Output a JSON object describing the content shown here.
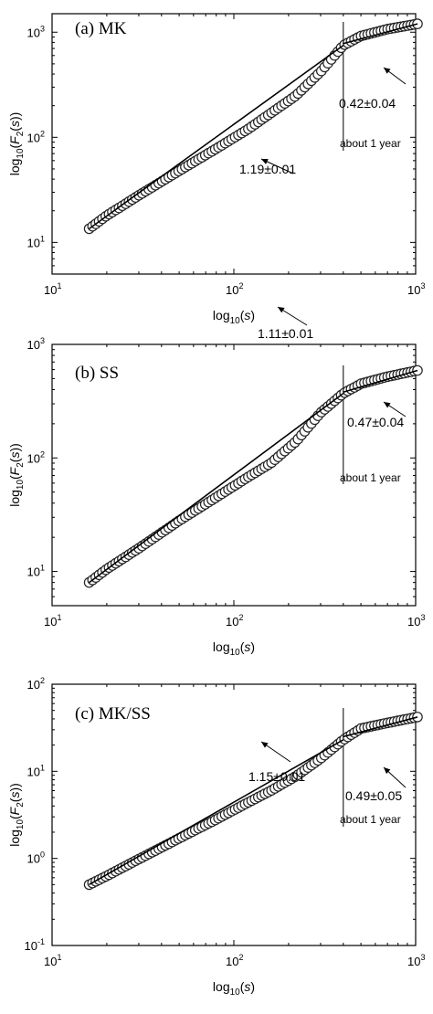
{
  "chart_data": [
    {
      "type": "scatter",
      "panel_label": "(a) MK",
      "xlabel": "log10(s)",
      "ylabel": "log10(F2(s))",
      "xscale": "log",
      "yscale": "log",
      "xlim": [
        10,
        1000
      ],
      "ylim": [
        5,
        1500
      ],
      "x_ticks": [
        {
          "value": 10,
          "exp": "1"
        },
        {
          "value": 100,
          "exp": "2"
        },
        {
          "value": 1000,
          "exp": "3"
        }
      ],
      "y_ticks": [
        {
          "value": 10,
          "exp": "1"
        },
        {
          "value": 100,
          "exp": "2"
        },
        {
          "value": 1000,
          "exp": "3"
        }
      ],
      "x_start": 16,
      "x_end": 1024,
      "n_points": 100,
      "anchors": [
        [
          16,
          13.5
        ],
        [
          20,
          18
        ],
        [
          30,
          28
        ],
        [
          50,
          48
        ],
        [
          80,
          78
        ],
        [
          120,
          120
        ],
        [
          160,
          170
        ],
        [
          220,
          250
        ],
        [
          300,
          420
        ],
        [
          400,
          750
        ],
        [
          500,
          920
        ],
        [
          700,
          1070
        ],
        [
          1024,
          1200
        ]
      ],
      "fit_segments": [
        {
          "x": [
            16,
            400
          ],
          "y": [
            13.5,
            750
          ],
          "slope_label": "1.19±0.01"
        },
        {
          "x": [
            400,
            1024
          ],
          "y": [
            780,
            1200
          ],
          "slope_label": "0.42±0.04"
        }
      ],
      "vline_x": 400,
      "vline_label": "about 1 year",
      "grid": false,
      "legend": "none"
    },
    {
      "type": "scatter",
      "panel_label": "(b) SS",
      "xlabel": "log10(s)",
      "ylabel": "log10(F2(s))",
      "xscale": "log",
      "yscale": "log",
      "xlim": [
        10,
        1000
      ],
      "ylim": [
        5,
        1000
      ],
      "x_ticks": [
        {
          "value": 10,
          "exp": "1"
        },
        {
          "value": 100,
          "exp": "2"
        },
        {
          "value": 1000,
          "exp": "3"
        }
      ],
      "y_ticks": [
        {
          "value": 10,
          "exp": "1"
        },
        {
          "value": 100,
          "exp": "2"
        },
        {
          "value": 1000,
          "exp": "3"
        }
      ],
      "x_start": 16,
      "x_end": 1024,
      "n_points": 100,
      "anchors": [
        [
          16,
          8
        ],
        [
          20,
          10.5
        ],
        [
          30,
          16
        ],
        [
          50,
          28
        ],
        [
          80,
          45
        ],
        [
          120,
          68
        ],
        [
          160,
          90
        ],
        [
          220,
          140
        ],
        [
          300,
          250
        ],
        [
          400,
          370
        ],
        [
          500,
          450
        ],
        [
          700,
          520
        ],
        [
          1024,
          590
        ]
      ],
      "fit_segments": [
        {
          "x": [
            16,
            400
          ],
          "y": [
            8,
            370
          ],
          "slope_label": "1.11±0.01"
        },
        {
          "x": [
            400,
            1024
          ],
          "y": [
            380,
            590
          ],
          "slope_label": "0.47±0.04"
        }
      ],
      "vline_x": 400,
      "vline_label": "about 1 year",
      "grid": false,
      "legend": "none"
    },
    {
      "type": "scatter",
      "panel_label": "(c) MK/SS",
      "xlabel": "log10(s)",
      "ylabel": "log10(F2(s))",
      "xscale": "log",
      "yscale": "log",
      "xlim": [
        10,
        1000
      ],
      "ylim": [
        0.1,
        100
      ],
      "x_ticks": [
        {
          "value": 10,
          "exp": "1"
        },
        {
          "value": 100,
          "exp": "2"
        },
        {
          "value": 1000,
          "exp": "3"
        }
      ],
      "y_ticks": [
        {
          "value": 0.1,
          "exp": "-1"
        },
        {
          "value": 1,
          "exp": "0"
        },
        {
          "value": 10,
          "exp": "1"
        },
        {
          "value": 100,
          "exp": "2"
        }
      ],
      "x_start": 16,
      "x_end": 1024,
      "n_points": 100,
      "anchors": [
        [
          16,
          0.5
        ],
        [
          20,
          0.63
        ],
        [
          30,
          0.98
        ],
        [
          50,
          1.7
        ],
        [
          80,
          2.8
        ],
        [
          120,
          4.4
        ],
        [
          160,
          6.0
        ],
        [
          220,
          8.8
        ],
        [
          300,
          14
        ],
        [
          400,
          23
        ],
        [
          500,
          31
        ],
        [
          700,
          36
        ],
        [
          1024,
          42
        ]
      ],
      "fit_segments": [
        {
          "x": [
            16,
            400
          ],
          "y": [
            0.5,
            23
          ],
          "slope_label": "1.15±0.01"
        },
        {
          "x": [
            400,
            1024
          ],
          "y": [
            25,
            42
          ],
          "slope_label": "0.49±0.05"
        }
      ],
      "vline_x": 400,
      "vline_label": "about 1 year",
      "grid": false,
      "legend": "none"
    }
  ]
}
